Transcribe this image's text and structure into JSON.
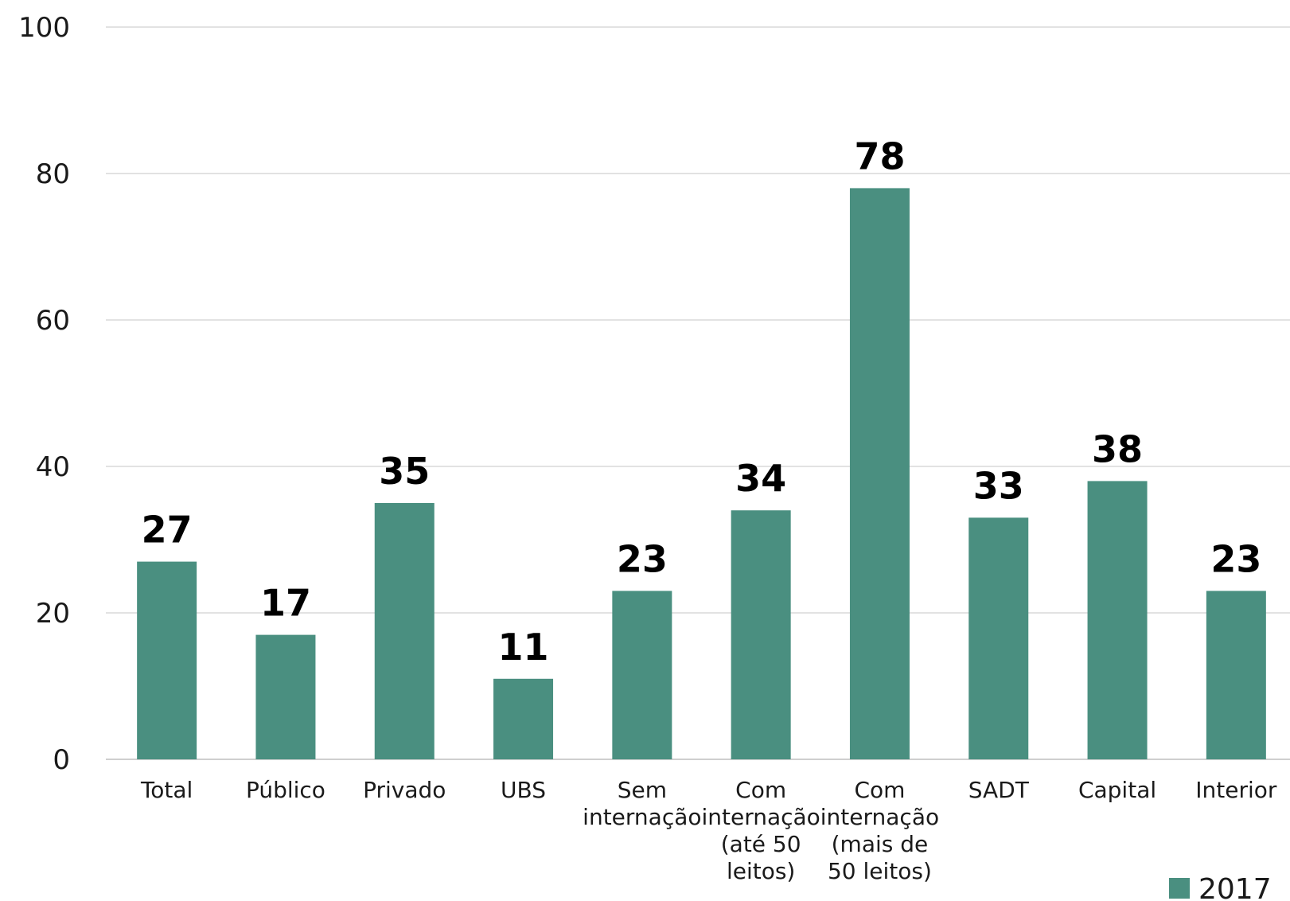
{
  "chart_data": {
    "type": "bar",
    "title": "",
    "xlabel": "",
    "ylabel": "",
    "ylim": [
      0,
      100
    ],
    "yticks": [
      0,
      20,
      40,
      60,
      80,
      100
    ],
    "grid": true,
    "legend_position": "bottom-right",
    "categories": [
      [
        "Total"
      ],
      [
        "Público"
      ],
      [
        "Privado"
      ],
      [
        "UBS"
      ],
      [
        "Sem",
        "internação"
      ],
      [
        "Com",
        "internação",
        "(até 50",
        "leitos)"
      ],
      [
        "Com",
        "internação",
        "(mais de",
        "50 leitos)"
      ],
      [
        "SADT"
      ],
      [
        "Capital"
      ],
      [
        "Interior"
      ]
    ],
    "series": [
      {
        "name": "2017",
        "color": "#4a8f80",
        "values": [
          27,
          17,
          35,
          11,
          23,
          34,
          78,
          33,
          38,
          23
        ],
        "labels": [
          "27",
          "17",
          "35",
          "11",
          "23",
          "34",
          "78",
          "33",
          "38",
          "23"
        ]
      }
    ]
  }
}
